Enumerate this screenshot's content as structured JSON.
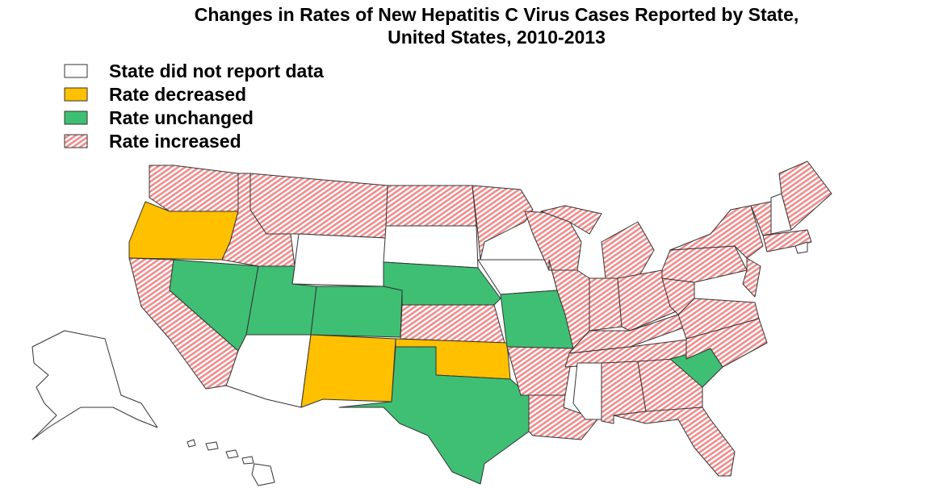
{
  "map": {
    "title": [
      "Changes in Rates of New Hepatitis C Virus Cases Reported by State,",
      "United States, 2010-2013"
    ],
    "legend": [
      {
        "label": "State did not report data",
        "color": "#ffffff"
      },
      {
        "label": "Rate decreased",
        "color": "#ffc000"
      },
      {
        "label": "Rate unchanged",
        "color": "#3fbf74"
      },
      {
        "label": "Rate increased",
        "color": "#f08c8c",
        "hatch": true
      }
    ]
  }
}
